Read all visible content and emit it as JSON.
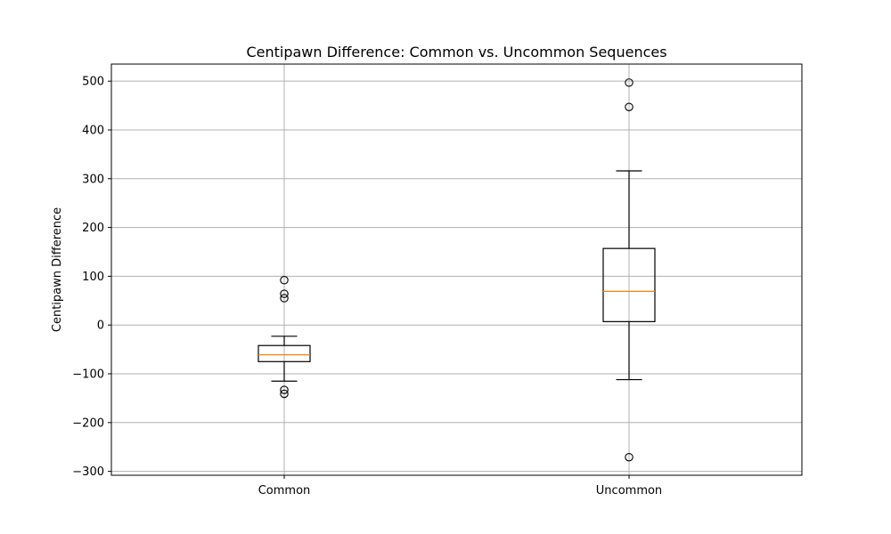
{
  "chart_data": {
    "type": "boxplot",
    "title": "Centipawn Difference: Common vs. Uncommon Sequences",
    "xlabel": "",
    "ylabel": "Centipawn Difference",
    "ylim": [
      -308,
      535
    ],
    "yticks": [
      -300,
      -200,
      -100,
      0,
      100,
      200,
      300,
      400,
      500
    ],
    "ytick_labels": [
      "−300",
      "−200",
      "−100",
      "0",
      "100",
      "200",
      "300",
      "400",
      "500"
    ],
    "grid": true,
    "categories": [
      "Common",
      "Uncommon"
    ],
    "boxes": [
      {
        "label": "Common",
        "whisker_low": -115,
        "q1": -75,
        "median": -61,
        "q3": -42,
        "whisker_high": -23,
        "outliers": [
          92,
          64,
          55,
          -133,
          -141
        ]
      },
      {
        "label": "Uncommon",
        "whisker_low": -112,
        "q1": 7,
        "median": 69,
        "q3": 157,
        "whisker_high": 316,
        "outliers": [
          497,
          447,
          -271
        ]
      }
    ],
    "colors": {
      "box": "#000000",
      "median": "#ff7f0e",
      "grid": "#b0b0b0"
    }
  }
}
